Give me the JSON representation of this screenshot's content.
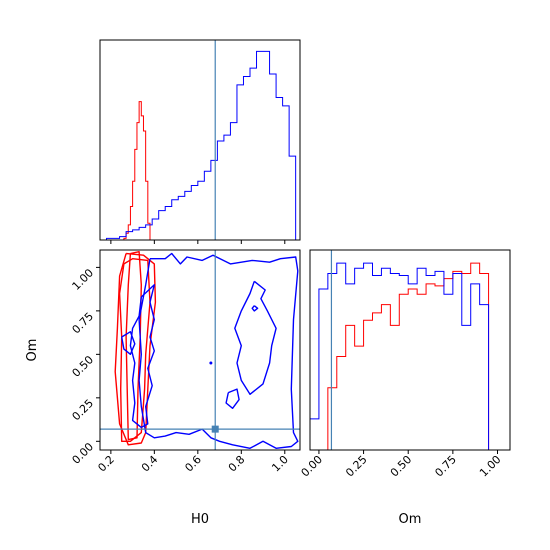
{
  "colors": {
    "red": "#ff0000",
    "blue": "#0000ff",
    "truth": "#4682b4",
    "frame": "#000000"
  },
  "labels": {
    "x_h0": "H0",
    "x_om": "Om",
    "y_om": "Om"
  },
  "truth": {
    "H0": 0.68,
    "Om": 0.07
  },
  "chart_data": [
    {
      "panel": "marginal-H0",
      "type": "histogram",
      "xlim": [
        0.15,
        1.07
      ],
      "grid": false,
      "series": [
        {
          "color": "red",
          "bin_edges": [
            0.25,
            0.26,
            0.27,
            0.28,
            0.29,
            0.3,
            0.31,
            0.32,
            0.33,
            0.34,
            0.35,
            0.36,
            0.37,
            0.38,
            0.39
          ],
          "counts": [
            0,
            2,
            8,
            18,
            40,
            70,
            108,
            140,
            165,
            148,
            130,
            70,
            20,
            0
          ]
        },
        {
          "color": "blue",
          "bin_edges": [
            0.15,
            0.18,
            0.21,
            0.24,
            0.27,
            0.3,
            0.33,
            0.36,
            0.39,
            0.42,
            0.45,
            0.48,
            0.51,
            0.54,
            0.57,
            0.6,
            0.63,
            0.66,
            0.69,
            0.72,
            0.75,
            0.78,
            0.81,
            0.84,
            0.87,
            0.9,
            0.93,
            0.96,
            0.99,
            1.02,
            1.05
          ],
          "counts": [
            0,
            2,
            2,
            4,
            10,
            12,
            15,
            18,
            25,
            35,
            40,
            48,
            52,
            58,
            65,
            70,
            82,
            95,
            118,
            125,
            140,
            185,
            195,
            205,
            225,
            225,
            198,
            170,
            160,
            100,
            0
          ]
        }
      ]
    },
    {
      "panel": "joint-H0-Om",
      "type": "contour",
      "xlabel": "H0",
      "ylabel": "Om",
      "xlim": [
        0.15,
        1.07
      ],
      "ylim": [
        -0.05,
        1.1
      ],
      "xticks": [
        "0.2",
        "0.4",
        "0.6",
        "0.8",
        "1.0"
      ],
      "yticks": [
        "0.00",
        "0.25",
        "0.50",
        "0.75",
        "1.00"
      ],
      "contours": [
        {
          "color": "red",
          "points": [
            [
              0.29,
              1.08
            ],
            [
              0.33,
              1.09
            ],
            [
              0.34,
              0.9
            ],
            [
              0.335,
              0.6
            ],
            [
              0.325,
              0.3
            ],
            [
              0.32,
              0.02
            ],
            [
              0.28,
              0.01
            ],
            [
              0.275,
              0.3
            ],
            [
              0.27,
              0.6
            ],
            [
              0.28,
              0.9
            ],
            [
              0.29,
              1.08
            ]
          ]
        },
        {
          "color": "red",
          "points": [
            [
              0.26,
              1.02
            ],
            [
              0.3,
              1.05
            ],
            [
              0.37,
              1.04
            ],
            [
              0.38,
              0.8
            ],
            [
              0.36,
              0.5
            ],
            [
              0.355,
              0.3
            ],
            [
              0.34,
              0.05
            ],
            [
              0.29,
              0.0
            ],
            [
              0.25,
              0.0
            ],
            [
              0.245,
              0.3
            ],
            [
              0.25,
              0.6
            ],
            [
              0.24,
              0.85
            ],
            [
              0.26,
              1.02
            ]
          ]
        },
        {
          "color": "red",
          "points": [
            [
              0.27,
              1.08
            ],
            [
              0.35,
              1.07
            ],
            [
              0.4,
              1.02
            ],
            [
              0.405,
              0.8
            ],
            [
              0.38,
              0.55
            ],
            [
              0.37,
              0.3
            ],
            [
              0.36,
              0.05
            ],
            [
              0.34,
              -0.01
            ],
            [
              0.28,
              -0.02
            ],
            [
              0.24,
              0.1
            ],
            [
              0.22,
              0.4
            ],
            [
              0.23,
              0.65
            ],
            [
              0.24,
              0.95
            ],
            [
              0.27,
              1.08
            ]
          ]
        },
        {
          "color": "blue",
          "points": [
            [
              0.38,
              1.05
            ],
            [
              0.45,
              1.05
            ],
            [
              0.48,
              1.08
            ],
            [
              0.52,
              1.02
            ],
            [
              0.55,
              1.06
            ],
            [
              0.62,
              1.04
            ],
            [
              0.67,
              1.07
            ],
            [
              0.75,
              1.02
            ],
            [
              0.85,
              1.04
            ],
            [
              0.93,
              1.03
            ],
            [
              0.98,
              1.05
            ],
            [
              1.05,
              1.06
            ],
            [
              1.06,
              0.98
            ],
            [
              1.04,
              0.7
            ],
            [
              1.03,
              0.3
            ],
            [
              1.04,
              0.05
            ],
            [
              1.06,
              0.0
            ],
            [
              1.03,
              -0.03
            ],
            [
              0.96,
              -0.04
            ],
            [
              0.9,
              0.0
            ],
            [
              0.84,
              -0.04
            ],
            [
              0.76,
              -0.02
            ],
            [
              0.7,
              0.0
            ],
            [
              0.66,
              0.02
            ],
            [
              0.62,
              0.07
            ],
            [
              0.56,
              0.04
            ],
            [
              0.5,
              0.05
            ],
            [
              0.45,
              0.03
            ],
            [
              0.4,
              0.02
            ],
            [
              0.36,
              0.05
            ],
            [
              0.34,
              0.2
            ],
            [
              0.33,
              0.35
            ],
            [
              0.34,
              0.5
            ],
            [
              0.33,
              0.7
            ],
            [
              0.36,
              0.9
            ],
            [
              0.38,
              1.05
            ]
          ]
        },
        {
          "color": "blue",
          "points": [
            [
              0.34,
              0.83
            ],
            [
              0.4,
              0.9
            ],
            [
              0.38,
              0.8
            ],
            [
              0.4,
              0.7
            ],
            [
              0.38,
              0.6
            ],
            [
              0.4,
              0.52
            ],
            [
              0.37,
              0.42
            ],
            [
              0.39,
              0.32
            ],
            [
              0.36,
              0.2
            ],
            [
              0.37,
              0.1
            ],
            [
              0.34,
              0.08
            ],
            [
              0.3,
              0.12
            ],
            [
              0.31,
              0.22
            ],
            [
              0.3,
              0.35
            ],
            [
              0.31,
              0.45
            ],
            [
              0.29,
              0.55
            ],
            [
              0.3,
              0.65
            ],
            [
              0.33,
              0.72
            ],
            [
              0.34,
              0.83
            ]
          ]
        },
        {
          "color": "blue",
          "points": [
            [
              0.25,
              0.6
            ],
            [
              0.29,
              0.63
            ],
            [
              0.31,
              0.56
            ],
            [
              0.29,
              0.5
            ],
            [
              0.26,
              0.53
            ],
            [
              0.25,
              0.6
            ]
          ]
        },
        {
          "color": "blue",
          "points": [
            [
              0.86,
              0.92
            ],
            [
              0.91,
              0.87
            ],
            [
              0.89,
              0.82
            ],
            [
              0.92,
              0.75
            ],
            [
              0.96,
              0.65
            ],
            [
              0.94,
              0.55
            ],
            [
              0.93,
              0.45
            ],
            [
              0.9,
              0.33
            ],
            [
              0.84,
              0.27
            ],
            [
              0.8,
              0.35
            ],
            [
              0.78,
              0.45
            ],
            [
              0.8,
              0.55
            ],
            [
              0.77,
              0.65
            ],
            [
              0.8,
              0.75
            ],
            [
              0.84,
              0.85
            ],
            [
              0.86,
              0.92
            ]
          ]
        },
        {
          "color": "blue",
          "points": [
            [
              0.74,
              0.28
            ],
            [
              0.78,
              0.3
            ],
            [
              0.79,
              0.24
            ],
            [
              0.76,
              0.19
            ],
            [
              0.73,
              0.22
            ],
            [
              0.74,
              0.28
            ]
          ]
        },
        {
          "color": "blue",
          "points": [
            [
              0.86,
              0.78
            ],
            [
              0.875,
              0.765
            ],
            [
              0.86,
              0.75
            ],
            [
              0.85,
              0.765
            ],
            [
              0.86,
              0.78
            ]
          ]
        }
      ]
    },
    {
      "panel": "marginal-Om",
      "type": "histogram",
      "xlabel": "Om",
      "xlim": [
        -0.05,
        1.07
      ],
      "xticks": [
        "0.00",
        "0.25",
        "0.50",
        "0.75",
        "1.00"
      ],
      "grid": false,
      "series": [
        {
          "color": "red",
          "bin_edges": [
            0.0,
            0.05,
            0.1,
            0.15,
            0.2,
            0.25,
            0.3,
            0.35,
            0.4,
            0.45,
            0.5,
            0.55,
            0.6,
            0.65,
            0.7,
            0.75,
            0.8,
            0.85,
            0.9,
            0.95,
            1.0
          ],
          "counts": [
            0,
            60,
            90,
            120,
            100,
            125,
            132,
            140,
            120,
            150,
            155,
            150,
            160,
            158,
            165,
            172,
            170,
            180,
            170,
            0
          ]
        },
        {
          "color": "blue",
          "bin_edges": [
            -0.05,
            0.0,
            0.05,
            0.1,
            0.15,
            0.2,
            0.25,
            0.3,
            0.35,
            0.4,
            0.45,
            0.5,
            0.55,
            0.6,
            0.65,
            0.7,
            0.75,
            0.8,
            0.85,
            0.9,
            0.95,
            1.0,
            1.05
          ],
          "counts": [
            30,
            155,
            170,
            180,
            160,
            175,
            180,
            168,
            175,
            170,
            168,
            160,
            175,
            168,
            172,
            150,
            170,
            120,
            160,
            140,
            0,
            0
          ]
        }
      ]
    }
  ]
}
